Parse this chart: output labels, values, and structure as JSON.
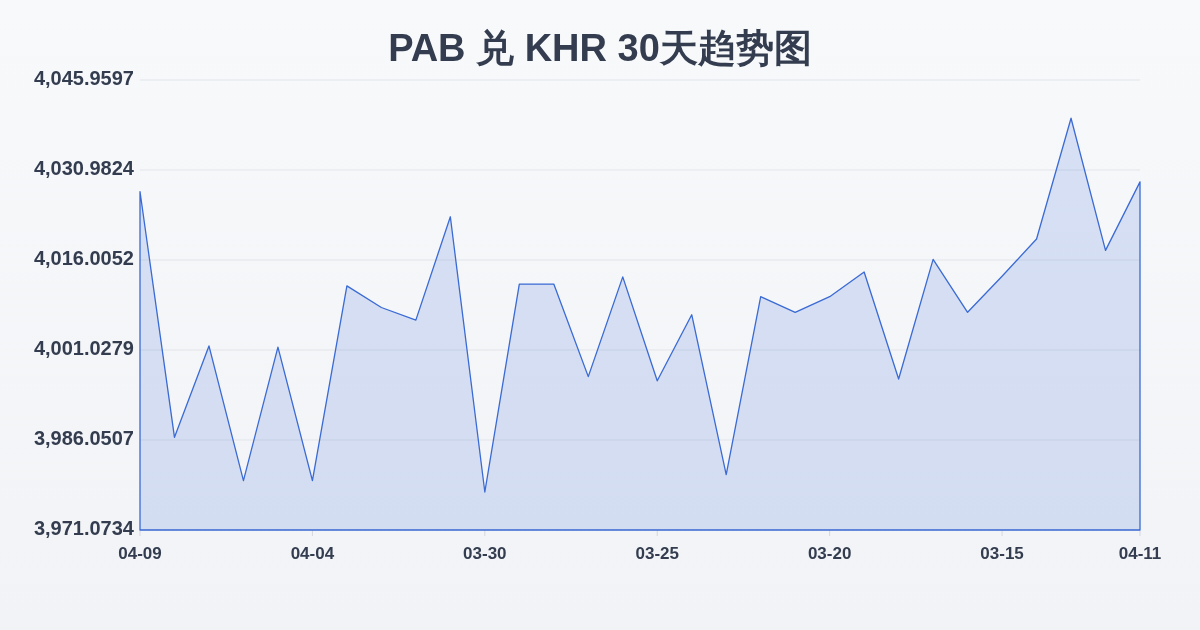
{
  "chart_data": {
    "type": "area",
    "title": "PAB 兑 KHR 30天趋势图",
    "categories": [
      "04-09",
      null,
      null,
      null,
      null,
      "04-04",
      null,
      null,
      null,
      null,
      "03-30",
      null,
      null,
      null,
      null,
      "03-25",
      null,
      null,
      null,
      null,
      "03-20",
      null,
      null,
      null,
      null,
      "03-15",
      null,
      null,
      null,
      "04-11"
    ],
    "series": [
      {
        "color": "#3a6ad4",
        "values": [
          4027.4,
          3986.5,
          4001.7,
          3979.3,
          4001.5,
          3979.3,
          4011.7,
          4008.1,
          4006.0,
          4023.2,
          3977.4,
          4012.0,
          4012.0,
          3996.6,
          4013.2,
          3995.9,
          4006.9,
          3980.3,
          4009.9,
          4007.3,
          4009.9,
          4014.0,
          3996.2,
          4016.1,
          4007.3,
          4013.3,
          4019.5,
          4039.6,
          4017.6,
          4029.0
        ]
      }
    ],
    "ylim": [
      3971.0734,
      4045.9597
    ],
    "yticks": [
      {
        "value": 3971.0734,
        "label": "3,971.0734"
      },
      {
        "value": 3986.0507,
        "label": "3,986.0507"
      },
      {
        "value": 4001.0279,
        "label": "4,001.0279"
      },
      {
        "value": 4016.0052,
        "label": "4,016.0052"
      },
      {
        "value": 4030.9824,
        "label": "4,030.9824"
      },
      {
        "value": 4045.9597,
        "label": "4,045.9597"
      }
    ],
    "grid": "y"
  }
}
